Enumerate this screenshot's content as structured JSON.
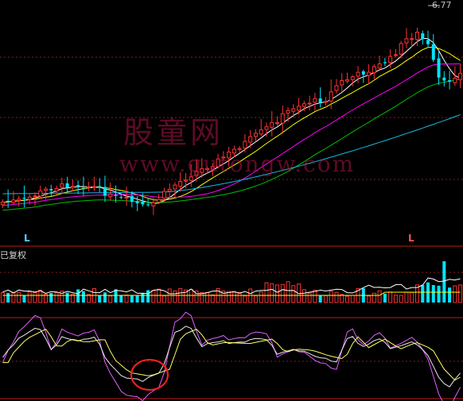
{
  "header": {
    "price_label": "6.77"
  },
  "markers": {
    "left": "L",
    "right": "L"
  },
  "volume_panel": {
    "label": "已复权"
  },
  "watermark": {
    "text_cn": "股童网",
    "url": "www.gutongw.com"
  },
  "colors": {
    "up": "#ff3232",
    "down": "#00e5ff",
    "grid": "#8b1a1a",
    "separator": "#c01818",
    "ma5": "#ffffff",
    "ma10": "#ffff00",
    "ma20": "#ff00ff",
    "ma30": "#00c000",
    "ma60": "#18b8e0",
    "k_line": "#e8e8e8",
    "d_line": "#ffff60",
    "j_line": "#e060ff",
    "highlight": "#ff2020"
  },
  "chart_data": {
    "type": "candlestick",
    "price_max": 6.77,
    "up_count": 61,
    "down_count": 25,
    "indicator_highlight": "circled KDJ low crossover"
  }
}
